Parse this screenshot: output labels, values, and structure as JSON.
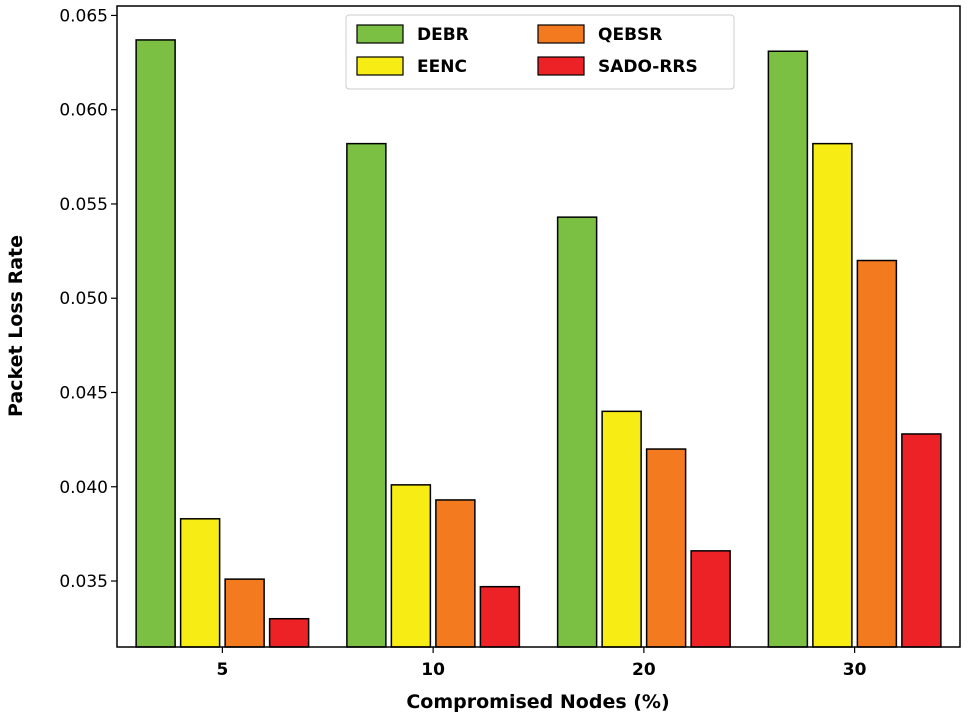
{
  "chart_data": {
    "type": "bar",
    "title": "",
    "xlabel": "Compromised Nodes (%)",
    "ylabel": "Packet Loss Rate",
    "categories": [
      "5",
      "10",
      "20",
      "30"
    ],
    "ylim": [
      0.0315,
      0.0655
    ],
    "yticks": [
      "0.035",
      "0.040",
      "0.045",
      "0.050",
      "0.055",
      "0.060",
      "0.065"
    ],
    "ytick_values": [
      0.035,
      0.04,
      0.045,
      0.05,
      0.055,
      0.06,
      0.065
    ],
    "legend_position": "top-center",
    "series": [
      {
        "name": "DEBR",
        "color": "#7bc043",
        "values": [
          0.0637,
          0.0582,
          0.0543,
          0.0631
        ]
      },
      {
        "name": "EENC",
        "color": "#f7ec13",
        "values": [
          0.0383,
          0.0401,
          0.044,
          0.0582
        ]
      },
      {
        "name": "QEBSR",
        "color": "#f47a20",
        "values": [
          0.0351,
          0.0393,
          0.042,
          0.052
        ]
      },
      {
        "name": "SADO-RRS",
        "color": "#ec2227",
        "values": [
          0.033,
          0.0347,
          0.0366,
          0.0428
        ]
      }
    ]
  }
}
